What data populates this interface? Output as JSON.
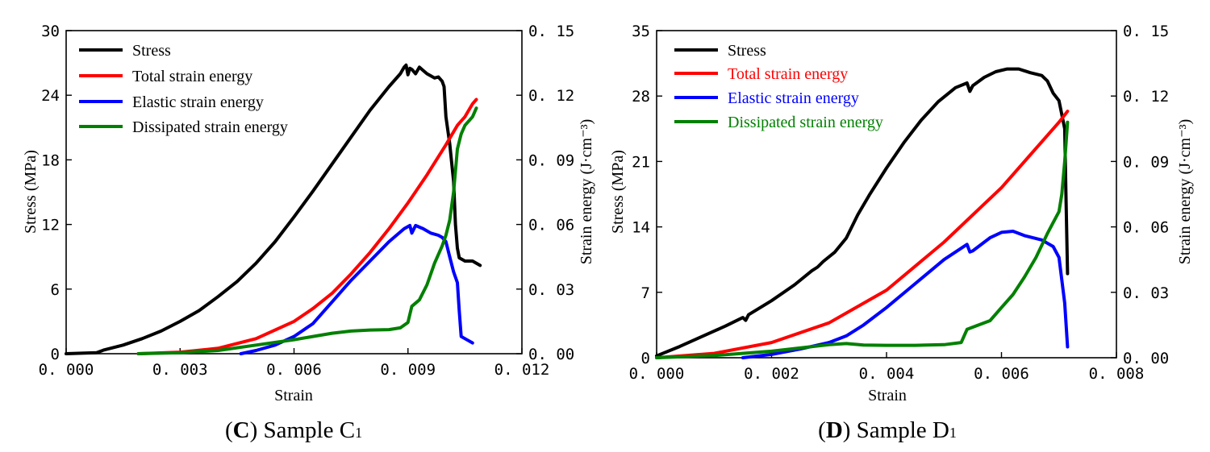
{
  "chart_data": [
    {
      "id": "C",
      "type": "line",
      "caption": {
        "open": "(",
        "letter": "C",
        "text": ") Sample C",
        "sub": "1"
      },
      "xlabel": "Strain",
      "ylabel": "Stress (MPa)",
      "y2label": "Strain energy (J·cm⁻³)",
      "xlim": [
        0,
        0.012
      ],
      "ylim": [
        0,
        30
      ],
      "y2lim": [
        0,
        0.15
      ],
      "xticks": [
        "0.000",
        "0.003",
        "0.006",
        "0.009",
        "0.012"
      ],
      "yticks": [
        "0",
        "6",
        "12",
        "18",
        "24",
        "30"
      ],
      "y2ticks": [
        "0.00",
        "0.03",
        "0.06",
        "0.09",
        "0.12",
        "0.15"
      ],
      "legend_color_mode": "black",
      "series": [
        {
          "name": "Stress",
          "color": "#000000",
          "axis": "left",
          "points": [
            [
              0,
              0
            ],
            [
              0.0008,
              0.1
            ],
            [
              0.001,
              0.35
            ],
            [
              0.0015,
              0.8
            ],
            [
              0.002,
              1.4
            ],
            [
              0.0025,
              2.1
            ],
            [
              0.003,
              3.0
            ],
            [
              0.0035,
              4.0
            ],
            [
              0.004,
              5.3
            ],
            [
              0.0045,
              6.7
            ],
            [
              0.005,
              8.4
            ],
            [
              0.0055,
              10.4
            ],
            [
              0.006,
              12.7
            ],
            [
              0.0065,
              15.1
            ],
            [
              0.007,
              17.6
            ],
            [
              0.0075,
              20.1
            ],
            [
              0.008,
              22.6
            ],
            [
              0.0085,
              24.8
            ],
            [
              0.0088,
              26.0
            ],
            [
              0.0089,
              26.6
            ],
            [
              0.00895,
              26.8
            ],
            [
              0.009,
              25.9
            ],
            [
              0.00905,
              26.5
            ],
            [
              0.0091,
              26.4
            ],
            [
              0.0092,
              26.0
            ],
            [
              0.0093,
              26.6
            ],
            [
              0.0094,
              26.3
            ],
            [
              0.0095,
              26.0
            ],
            [
              0.0096,
              25.8
            ],
            [
              0.0097,
              25.6
            ],
            [
              0.0098,
              25.7
            ],
            [
              0.0099,
              25.3
            ],
            [
              0.00995,
              24.8
            ],
            [
              0.01,
              22
            ],
            [
              0.0101,
              19.5
            ],
            [
              0.0102,
              16
            ],
            [
              0.01025,
              12
            ],
            [
              0.0103,
              9.8
            ],
            [
              0.01035,
              8.9
            ],
            [
              0.0105,
              8.6
            ],
            [
              0.0107,
              8.6
            ],
            [
              0.0109,
              8.2
            ]
          ]
        },
        {
          "name": "Total strain energy",
          "color": "#ff0000",
          "axis": "right",
          "points": [
            [
              0.0019,
              0
            ],
            [
              0.003,
              0.0007
            ],
            [
              0.004,
              0.0025
            ],
            [
              0.005,
              0.007
            ],
            [
              0.006,
              0.015
            ],
            [
              0.0065,
              0.021
            ],
            [
              0.007,
              0.028
            ],
            [
              0.0075,
              0.037
            ],
            [
              0.008,
              0.047
            ],
            [
              0.0085,
              0.058
            ],
            [
              0.009,
              0.07
            ],
            [
              0.0095,
              0.083
            ],
            [
              0.01,
              0.097
            ],
            [
              0.0103,
              0.106
            ],
            [
              0.0105,
              0.11
            ],
            [
              0.0107,
              0.116
            ],
            [
              0.0108,
              0.118
            ]
          ]
        },
        {
          "name": "Elastic strain energy",
          "color": "#0000ff",
          "axis": "right",
          "points": [
            [
              0.0046,
              0
            ],
            [
              0.005,
              0.0015
            ],
            [
              0.0055,
              0.004
            ],
            [
              0.006,
              0.008
            ],
            [
              0.0065,
              0.014
            ],
            [
              0.007,
              0.024
            ],
            [
              0.0075,
              0.034
            ],
            [
              0.008,
              0.043
            ],
            [
              0.0085,
              0.052
            ],
            [
              0.0089,
              0.058
            ],
            [
              0.00905,
              0.0595
            ],
            [
              0.0091,
              0.056
            ],
            [
              0.0092,
              0.0595
            ],
            [
              0.0094,
              0.058
            ],
            [
              0.0096,
              0.056
            ],
            [
              0.0098,
              0.055
            ],
            [
              0.0099,
              0.054
            ],
            [
              0.01,
              0.052
            ],
            [
              0.0101,
              0.045
            ],
            [
              0.0102,
              0.038
            ],
            [
              0.0103,
              0.033
            ],
            [
              0.01035,
              0.02
            ],
            [
              0.0104,
              0.008
            ],
            [
              0.0105,
              0.007
            ],
            [
              0.0107,
              0.005
            ]
          ]
        },
        {
          "name": "Dissipated strain energy",
          "color": "#008000",
          "axis": "right",
          "points": [
            [
              0.0019,
              0
            ],
            [
              0.003,
              0.0005
            ],
            [
              0.004,
              0.0015
            ],
            [
              0.005,
              0.004
            ],
            [
              0.006,
              0.0065
            ],
            [
              0.0065,
              0.008
            ],
            [
              0.007,
              0.0095
            ],
            [
              0.0075,
              0.0105
            ],
            [
              0.008,
              0.011
            ],
            [
              0.0085,
              0.0112
            ],
            [
              0.0088,
              0.012
            ],
            [
              0.009,
              0.0145
            ],
            [
              0.0091,
              0.022
            ],
            [
              0.0093,
              0.025
            ],
            [
              0.0095,
              0.032
            ],
            [
              0.0097,
              0.042
            ],
            [
              0.0099,
              0.05
            ],
            [
              0.01,
              0.055
            ],
            [
              0.0101,
              0.062
            ],
            [
              0.0102,
              0.075
            ],
            [
              0.0103,
              0.095
            ],
            [
              0.0104,
              0.102
            ],
            [
              0.0105,
              0.106
            ],
            [
              0.0107,
              0.11
            ],
            [
              0.0108,
              0.114
            ]
          ]
        }
      ]
    },
    {
      "id": "D",
      "type": "line",
      "caption": {
        "open": "(",
        "letter": "D",
        "text": ") Sample D",
        "sub": "1"
      },
      "xlabel": "Strain",
      "ylabel": "Stress (MPa)",
      "y2label": "Strain energy (J·cm⁻³)",
      "xlim": [
        0,
        0.008
      ],
      "ylim": [
        0,
        35
      ],
      "y2lim": [
        0,
        0.15
      ],
      "xticks": [
        "0.000",
        "0.002",
        "0.004",
        "0.006",
        "0.008"
      ],
      "yticks": [
        "0",
        "7",
        "14",
        "21",
        "28",
        "35"
      ],
      "y2ticks": [
        "0.00",
        "0.03",
        "0.06",
        "0.09",
        "0.12",
        "0.15"
      ],
      "legend_color_mode": "series",
      "series": [
        {
          "name": "Stress",
          "color": "#000000",
          "axis": "left",
          "points": [
            [
              0,
              0.2
            ],
            [
              0.0004,
              1.2
            ],
            [
              0.0008,
              2.3
            ],
            [
              0.0012,
              3.4
            ],
            [
              0.0015,
              4.3
            ],
            [
              0.00155,
              4.0
            ],
            [
              0.0016,
              4.6
            ],
            [
              0.002,
              6.1
            ],
            [
              0.0024,
              7.8
            ],
            [
              0.0027,
              9.3
            ],
            [
              0.0028,
              9.7
            ],
            [
              0.0029,
              10.3
            ],
            [
              0.0031,
              11.3
            ],
            [
              0.0033,
              12.8
            ],
            [
              0.0035,
              15.3
            ],
            [
              0.0037,
              17.4
            ],
            [
              0.004,
              20.3
            ],
            [
              0.0043,
              23.0
            ],
            [
              0.0046,
              25.4
            ],
            [
              0.0049,
              27.4
            ],
            [
              0.0052,
              28.9
            ],
            [
              0.0054,
              29.4
            ],
            [
              0.00545,
              28.5
            ],
            [
              0.0055,
              29.1
            ],
            [
              0.0057,
              30.0
            ],
            [
              0.0059,
              30.6
            ],
            [
              0.0061,
              30.9
            ],
            [
              0.0063,
              30.9
            ],
            [
              0.0065,
              30.5
            ],
            [
              0.0067,
              30.2
            ],
            [
              0.0068,
              29.6
            ],
            [
              0.0069,
              28.3
            ],
            [
              0.007,
              27.5
            ],
            [
              0.0071,
              24.5
            ],
            [
              0.00712,
              18
            ],
            [
              0.00715,
              9
            ]
          ]
        },
        {
          "name": "Total strain energy",
          "color": "#ff0000",
          "axis": "right",
          "points": [
            [
              0,
              0
            ],
            [
              0.001,
              0.002
            ],
            [
              0.002,
              0.007
            ],
            [
              0.003,
              0.016
            ],
            [
              0.004,
              0.031
            ],
            [
              0.005,
              0.053
            ],
            [
              0.006,
              0.078
            ],
            [
              0.007,
              0.108
            ],
            [
              0.00715,
              0.113
            ]
          ]
        },
        {
          "name": "Elastic strain energy",
          "color": "#0000ff",
          "axis": "right",
          "points": [
            [
              0.0015,
              0
            ],
            [
              0.002,
              0.0015
            ],
            [
              0.0025,
              0.004
            ],
            [
              0.003,
              0.007
            ],
            [
              0.0033,
              0.01
            ],
            [
              0.0036,
              0.015
            ],
            [
              0.004,
              0.023
            ],
            [
              0.0045,
              0.034
            ],
            [
              0.005,
              0.045
            ],
            [
              0.0054,
              0.052
            ],
            [
              0.00545,
              0.0485
            ],
            [
              0.0055,
              0.049
            ],
            [
              0.0058,
              0.055
            ],
            [
              0.006,
              0.0575
            ],
            [
              0.0062,
              0.058
            ],
            [
              0.0064,
              0.056
            ],
            [
              0.0067,
              0.054
            ],
            [
              0.0069,
              0.051
            ],
            [
              0.007,
              0.046
            ],
            [
              0.0071,
              0.025
            ],
            [
              0.00715,
              0.005
            ]
          ]
        },
        {
          "name": "Dissipated strain energy",
          "color": "#008000",
          "axis": "right",
          "points": [
            [
              0,
              0
            ],
            [
              0.001,
              0.001
            ],
            [
              0.002,
              0.003
            ],
            [
              0.003,
              0.006
            ],
            [
              0.0033,
              0.0065
            ],
            [
              0.0036,
              0.0058
            ],
            [
              0.004,
              0.0057
            ],
            [
              0.0045,
              0.0057
            ],
            [
              0.005,
              0.006
            ],
            [
              0.0053,
              0.007
            ],
            [
              0.0054,
              0.013
            ],
            [
              0.0056,
              0.015
            ],
            [
              0.0058,
              0.017
            ],
            [
              0.006,
              0.023
            ],
            [
              0.0062,
              0.029
            ],
            [
              0.0064,
              0.037
            ],
            [
              0.0066,
              0.046
            ],
            [
              0.0068,
              0.057
            ],
            [
              0.0069,
              0.062
            ],
            [
              0.007,
              0.067
            ],
            [
              0.00705,
              0.075
            ],
            [
              0.0071,
              0.09
            ],
            [
              0.00715,
              0.108
            ]
          ]
        }
      ]
    }
  ]
}
